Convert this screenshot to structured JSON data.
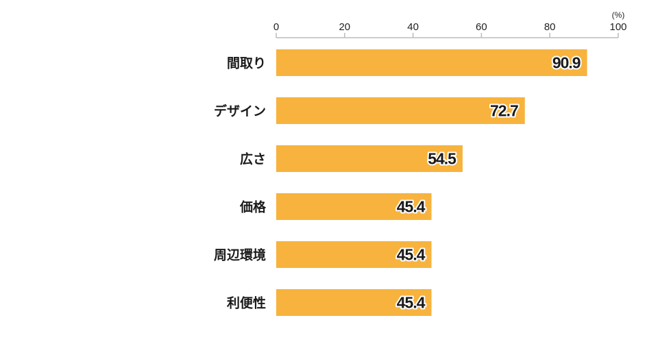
{
  "chart_data": {
    "type": "bar",
    "orientation": "horizontal",
    "title": "",
    "xlabel": "",
    "ylabel": "",
    "unit_label": "(%)",
    "xlim": [
      0,
      100
    ],
    "ticks": [
      0,
      20,
      40,
      60,
      80,
      100
    ],
    "tick_labels": [
      "0",
      "20",
      "40",
      "60",
      "80",
      "100"
    ],
    "categories": [
      "間取り",
      "デザイン",
      "広さ",
      "価格",
      "周辺環境",
      "利便性"
    ],
    "values": [
      90.9,
      72.7,
      54.5,
      45.4,
      45.4,
      45.4
    ],
    "value_labels": [
      "90.9",
      "72.7",
      "54.5",
      "45.4",
      "45.4",
      "45.4"
    ],
    "bar_color": "#F7B33D",
    "axis_color": "#BBBBBB",
    "grid": false,
    "legend": "none"
  }
}
